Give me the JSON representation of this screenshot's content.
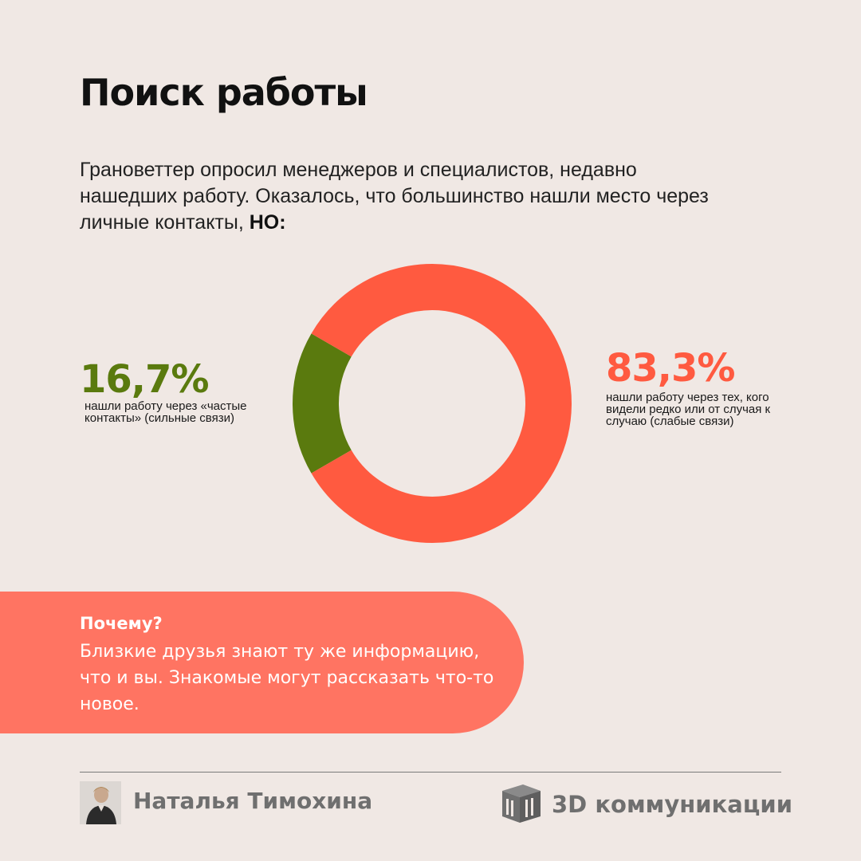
{
  "title": "Поиск работы",
  "intro": {
    "text": "Грановеттер опросил менеджеров и специалистов, недавно нашедших работу. Оказалось, что большинство нашли место через личные контакты, ",
    "emphasis": "НО:"
  },
  "colors": {
    "strong": "#5A7A0E",
    "weak": "#FF5A40",
    "callout": "#FF7462"
  },
  "chart_data": {
    "type": "pie",
    "donut": true,
    "slices": [
      {
        "label": "16,7%",
        "value": 16.7,
        "caption": "нашли работу через «частые контакты» (сильные связи)",
        "color": "#5A7A0E"
      },
      {
        "label": "83,3%",
        "value": 83.3,
        "caption": "нашли работу через тех, кого видели редко или от случая к случаю (слабые связи)",
        "color": "#FF5A40"
      }
    ]
  },
  "why": {
    "title": "Почему?",
    "text": "Близкие друзья знают ту же информацию, что и вы. Знакомые могут рассказать что-то новое."
  },
  "footer": {
    "author": "Наталья Тимохина",
    "company": "3D коммуникации"
  }
}
